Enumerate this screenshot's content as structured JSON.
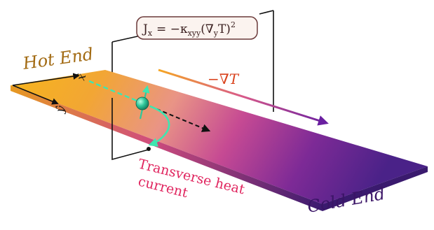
{
  "equation": {
    "lhs": "J",
    "lhs_sub": "x",
    "rhs_sign": "= −κ",
    "rhs_sub": "xyy",
    "rhs_paren": "(∇",
    "rhs_grad_sub": "y",
    "rhs_T": "T)",
    "rhs_pow": "2"
  },
  "labels": {
    "hot_end": "Hot End",
    "cold_end": "Cold End",
    "grad_label": "−∇T",
    "transverse_line1": "Transverse heat",
    "transverse_line2": "current"
  },
  "axes": {
    "x_axis": "x̂",
    "y_axis": "ŷ"
  },
  "colors": {
    "hot": "#f5b21e",
    "mid": "#e0608a",
    "cold": "#5a1f8c",
    "hot_label": "#a26a12",
    "cold_label": "#3a1466",
    "grad_label": "#d9421c",
    "transverse_label": "#e0245e",
    "particle": "#2fc79b",
    "equation_border": "#6b3a3a"
  }
}
